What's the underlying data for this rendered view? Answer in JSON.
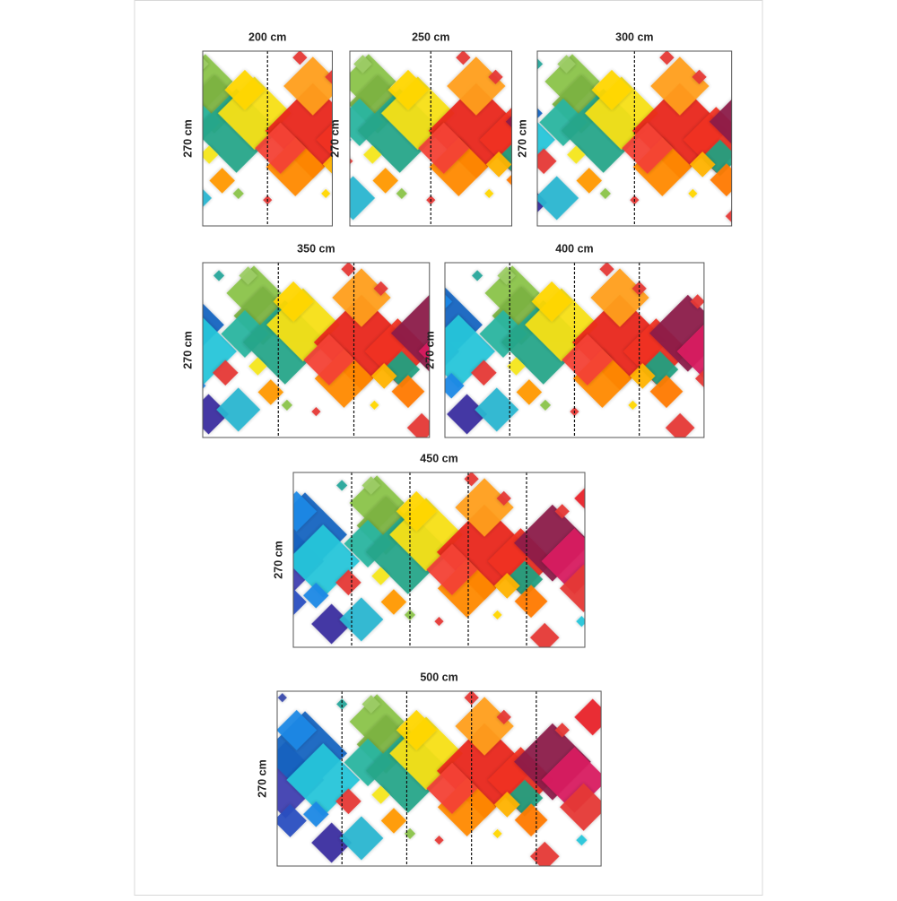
{
  "panels": [
    {
      "width_label": "200 cm",
      "height_label": "270 cm"
    },
    {
      "width_label": "250 cm",
      "height_label": "270 cm"
    },
    {
      "width_label": "300 cm",
      "height_label": "270 cm"
    },
    {
      "width_label": "350 cm",
      "height_label": "270 cm"
    },
    {
      "width_label": "400 cm",
      "height_label": "270 cm"
    },
    {
      "width_label": "450 cm",
      "height_label": "270 cm"
    },
    {
      "width_label": "500 cm",
      "height_label": "270 cm"
    }
  ]
}
